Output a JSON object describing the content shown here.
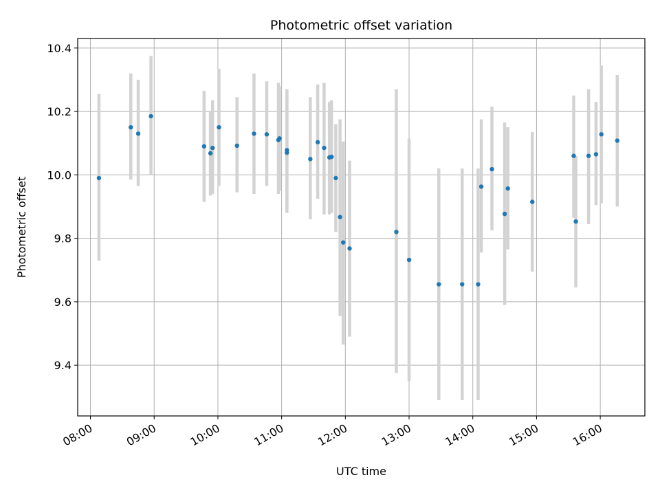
{
  "chart_data": {
    "type": "scatter",
    "title": "Photometric offset variation",
    "xlabel": "UTC time",
    "ylabel": "Photometric offset",
    "x_ticks": [
      "08:00",
      "09:00",
      "10:00",
      "11:00",
      "12:00",
      "13:00",
      "14:00",
      "15:00",
      "16:00"
    ],
    "y_ticks": [
      "9.4",
      "9.6",
      "9.8",
      "10.0",
      "10.2",
      "10.4"
    ],
    "xlim": [
      "07:48",
      "16:42"
    ],
    "ylim": [
      9.24,
      10.43
    ],
    "grid": true,
    "marker_color": "#1f77b4",
    "errorbar_color": "#d3d3d3",
    "points": [
      {
        "t": "08:08",
        "y": 9.99,
        "low": 9.73,
        "high": 10.255
      },
      {
        "t": "08:38",
        "y": 10.15,
        "low": 9.985,
        "high": 10.32
      },
      {
        "t": "08:45",
        "y": 10.13,
        "low": 9.965,
        "high": 10.3
      },
      {
        "t": "08:57",
        "y": 10.185,
        "low": 10.0,
        "high": 10.375
      },
      {
        "t": "09:47",
        "y": 10.09,
        "low": 9.915,
        "high": 10.265
      },
      {
        "t": "09:53",
        "y": 10.068,
        "low": 9.935,
        "high": 10.2
      },
      {
        "t": "09:55",
        "y": 10.085,
        "low": 9.94,
        "high": 10.235
      },
      {
        "t": "10:01",
        "y": 10.15,
        "low": 9.965,
        "high": 10.335
      },
      {
        "t": "10:18",
        "y": 10.092,
        "low": 9.945,
        "high": 10.245
      },
      {
        "t": "10:34",
        "y": 10.13,
        "low": 9.94,
        "high": 10.32
      },
      {
        "t": "10:46",
        "y": 10.128,
        "low": 9.965,
        "high": 10.295
      },
      {
        "t": "10:57",
        "y": 10.11,
        "low": 9.94,
        "high": 10.29
      },
      {
        "t": "10:58",
        "y": 10.115,
        "low": 9.95,
        "high": 10.28
      },
      {
        "t": "11:05",
        "y": 10.07,
        "low": 9.88,
        "high": 10.27
      },
      {
        "t": "11:05",
        "y": 10.078,
        "low": 9.89,
        "high": 10.26
      },
      {
        "t": "11:27",
        "y": 10.05,
        "low": 9.86,
        "high": 10.245
      },
      {
        "t": "11:34",
        "y": 10.103,
        "low": 9.925,
        "high": 10.285
      },
      {
        "t": "11:40",
        "y": 10.085,
        "low": 9.875,
        "high": 10.29
      },
      {
        "t": "11:45",
        "y": 10.055,
        "low": 9.875,
        "high": 10.23
      },
      {
        "t": "11:47",
        "y": 10.057,
        "low": 9.88,
        "high": 10.235
      },
      {
        "t": "11:51",
        "y": 9.99,
        "low": 9.82,
        "high": 10.16
      },
      {
        "t": "11:55",
        "y": 9.867,
        "low": 9.555,
        "high": 10.175
      },
      {
        "t": "11:58",
        "y": 9.787,
        "low": 9.465,
        "high": 10.105
      },
      {
        "t": "12:04",
        "y": 9.768,
        "low": 9.49,
        "high": 10.045
      },
      {
        "t": "12:48",
        "y": 9.82,
        "low": 9.375,
        "high": 10.27
      },
      {
        "t": "13:00",
        "y": 9.732,
        "low": 9.35,
        "high": 10.115
      },
      {
        "t": "13:28",
        "y": 9.655,
        "low": 9.29,
        "high": 10.02
      },
      {
        "t": "13:50",
        "y": 9.655,
        "low": 9.29,
        "high": 10.02
      },
      {
        "t": "14:05",
        "y": 9.655,
        "low": 9.29,
        "high": 10.02
      },
      {
        "t": "14:08",
        "y": 9.963,
        "low": 9.755,
        "high": 10.175
      },
      {
        "t": "14:18",
        "y": 10.018,
        "low": 9.825,
        "high": 10.215
      },
      {
        "t": "14:30",
        "y": 9.877,
        "low": 9.59,
        "high": 10.165
      },
      {
        "t": "14:33",
        "y": 9.957,
        "low": 9.765,
        "high": 10.15
      },
      {
        "t": "14:56",
        "y": 9.915,
        "low": 9.695,
        "high": 10.135
      },
      {
        "t": "15:35",
        "y": 10.06,
        "low": 9.865,
        "high": 10.25
      },
      {
        "t": "15:37",
        "y": 9.853,
        "low": 9.645,
        "high": 10.06
      },
      {
        "t": "15:49",
        "y": 10.06,
        "low": 9.845,
        "high": 10.27
      },
      {
        "t": "15:56",
        "y": 10.065,
        "low": 9.905,
        "high": 10.23
      },
      {
        "t": "16:01",
        "y": 10.128,
        "low": 9.91,
        "high": 10.345
      },
      {
        "t": "16:16",
        "y": 10.108,
        "low": 9.9,
        "high": 10.315
      }
    ]
  }
}
